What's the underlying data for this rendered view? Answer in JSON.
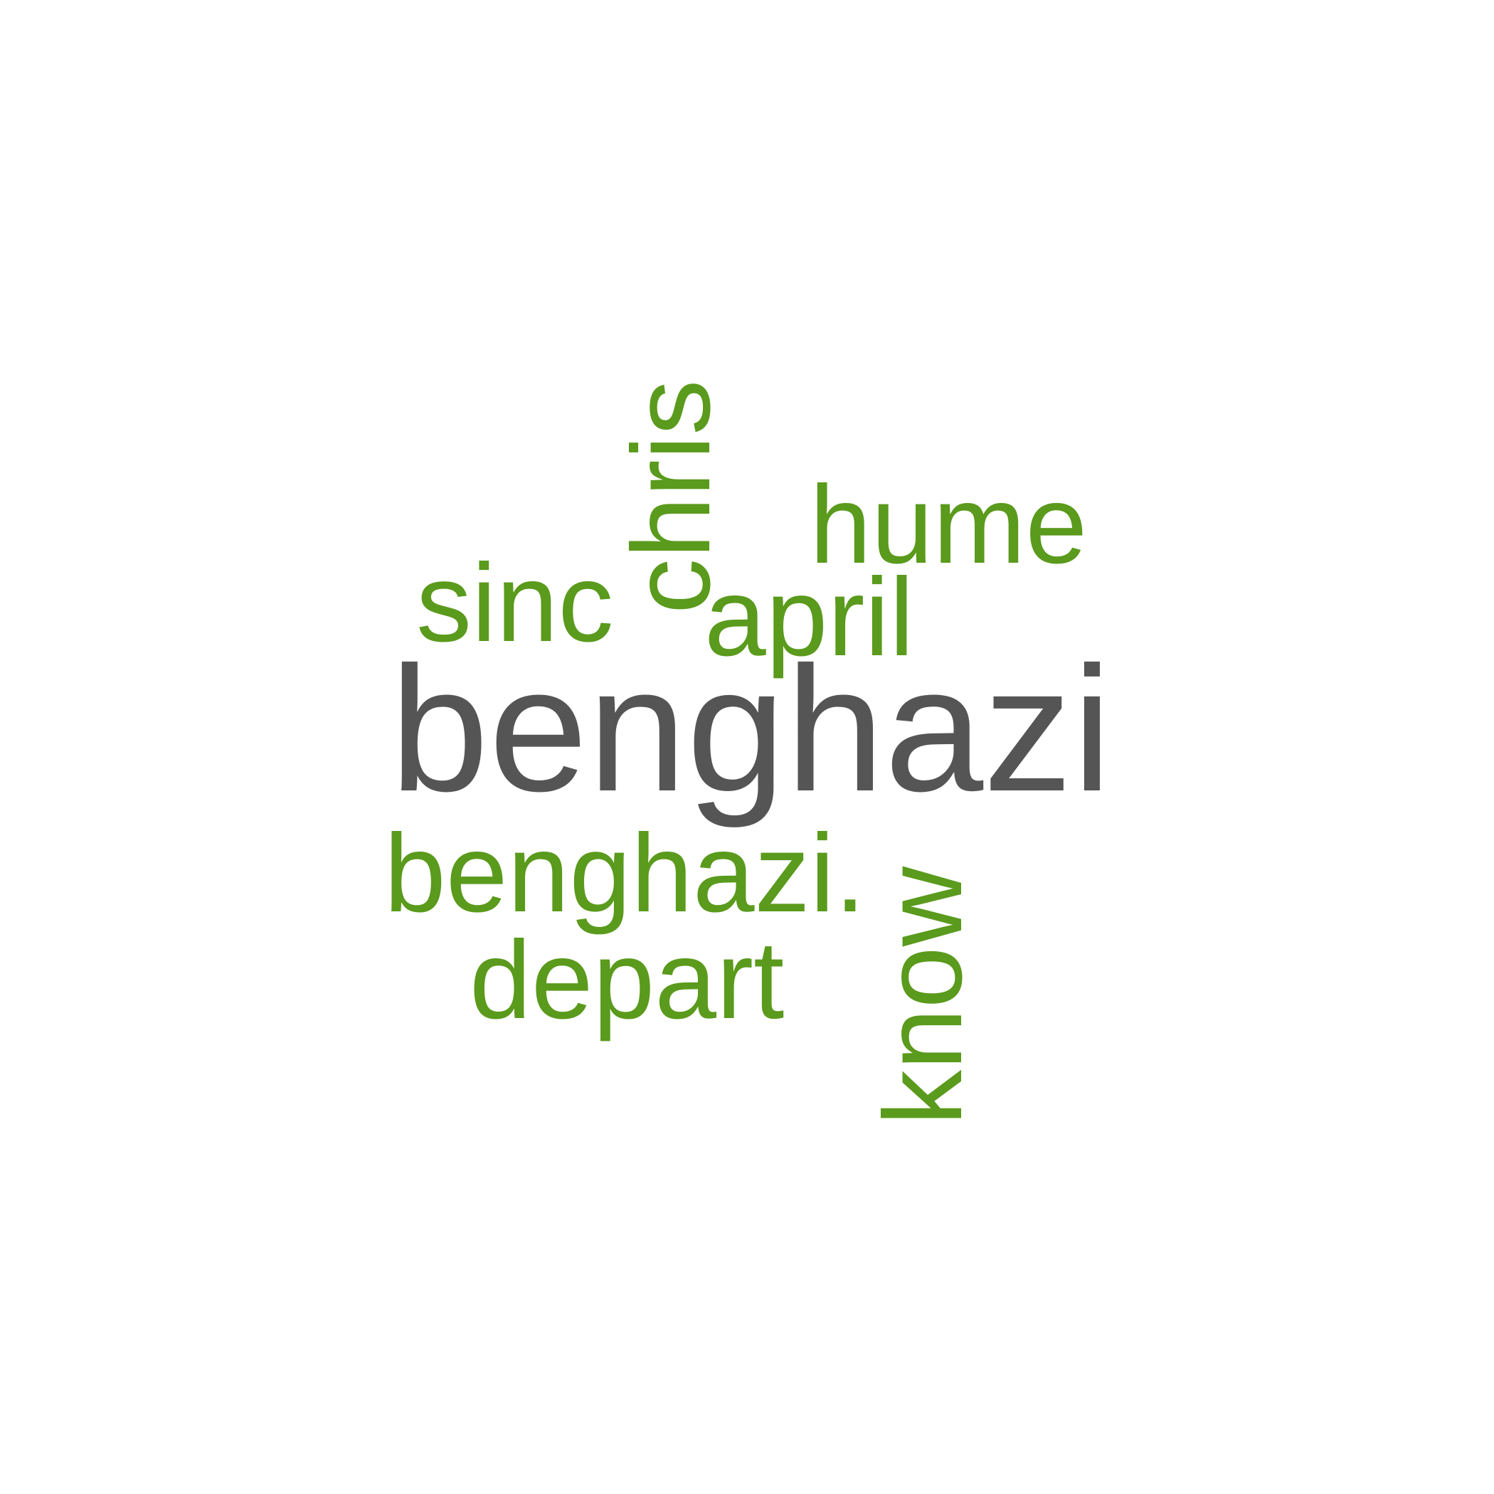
{
  "colors": {
    "primary": "#555555",
    "secondary": "#5a9a1c",
    "background": "#ffffff"
  },
  "words": {
    "benghazi": "benghazi",
    "benghazi_dot": "benghazi.",
    "depart": "depart",
    "sinc": "sinc",
    "april": "april",
    "hume": "hume",
    "chris": "chris",
    "know": "know"
  }
}
